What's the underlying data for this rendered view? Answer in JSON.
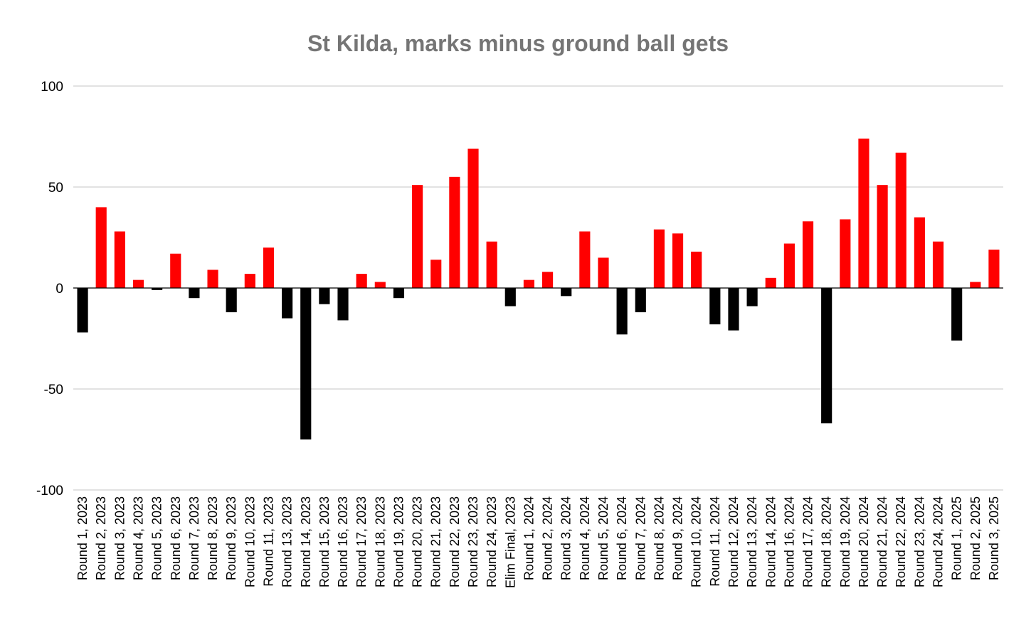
{
  "chart_data": {
    "type": "bar",
    "title": "St Kilda, marks minus ground ball gets",
    "xlabel": "",
    "ylabel": "",
    "ylim": [
      -100,
      100
    ],
    "yticks": [
      100,
      50,
      0,
      -50,
      -100
    ],
    "grid": true,
    "legend": "none",
    "colors": {
      "positive": "#ff0000",
      "negative": "#000000"
    },
    "categories": [
      "Round 1, 2023",
      "Round 2, 2023",
      "Round 3, 2023",
      "Round 4, 2023",
      "Round 5, 2023",
      "Round 6, 2023",
      "Round 7, 2023",
      "Round 8, 2023",
      "Round 9, 2023",
      "Round 10, 2023",
      "Round 11, 2023",
      "Round 13, 2023",
      "Round 14, 2023",
      "Round 15, 2023",
      "Round 16, 2023",
      "Round 17, 2023",
      "Round 18, 2023",
      "Round 19, 2023",
      "Round 20, 2023",
      "Round 21, 2023",
      "Round 22, 2023",
      "Round 23, 2023",
      "Round 24, 2023",
      "Elim Final, 2023",
      "Round 1, 2024",
      "Round 2, 2024",
      "Round 3, 2024",
      "Round 4, 2024",
      "Round 5, 2024",
      "Round 6, 2024",
      "Round 7, 2024",
      "Round 8, 2024",
      "Round 9, 2024",
      "Round 10, 2024",
      "Round 11, 2024",
      "Round 12, 2024",
      "Round 13, 2024",
      "Round 14, 2024",
      "Round 16, 2024",
      "Round 17, 2024",
      "Round 18, 2024",
      "Round 19, 2024",
      "Round 20, 2024",
      "Round 21, 2024",
      "Round 22, 2024",
      "Round 23, 2024",
      "Round 24, 2024",
      "Round 1, 2025",
      "Round 2, 2025",
      "Round 3, 2025"
    ],
    "values": [
      -22,
      40,
      28,
      4,
      -1,
      17,
      -5,
      9,
      -12,
      7,
      20,
      -15,
      -75,
      -8,
      -16,
      7,
      3,
      -5,
      51,
      14,
      55,
      69,
      23,
      -9,
      4,
      8,
      -4,
      28,
      15,
      -23,
      -12,
      29,
      27,
      18,
      -18,
      -21,
      -9,
      5,
      22,
      33,
      -67,
      34,
      74,
      51,
      67,
      35,
      23,
      -26,
      3,
      19
    ]
  }
}
